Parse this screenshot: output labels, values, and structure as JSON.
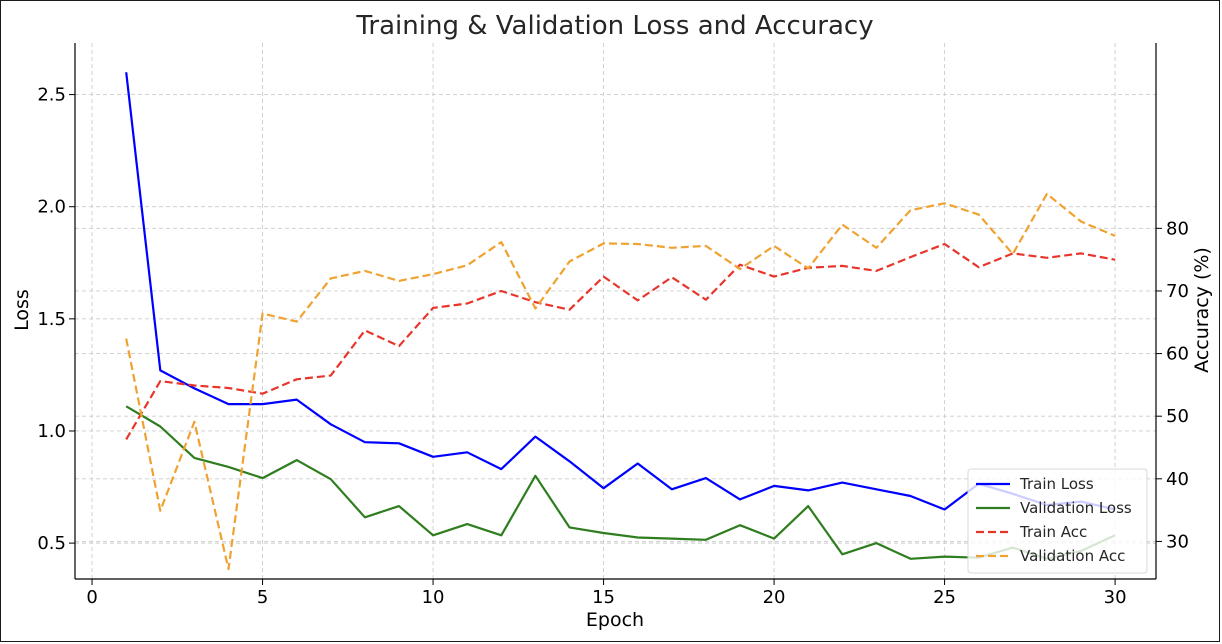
{
  "chart_data": {
    "type": "line",
    "title": "Training & Validation Loss and Accuracy",
    "xlabel": "Epoch",
    "ylabel_left": "Loss",
    "ylabel_right": "Accuracy (%)",
    "xlim": [
      -0.5,
      31.2
    ],
    "ylim_left": [
      0.34,
      2.73
    ],
    "ylim_right": [
      24.0,
      109.6
    ],
    "xticks": [
      0,
      5,
      10,
      15,
      20,
      25,
      30
    ],
    "yticks_left": [
      0.5,
      1.0,
      1.5,
      2.0,
      2.5
    ],
    "yticks_right": [
      30,
      40,
      50,
      60,
      70,
      80
    ],
    "grid": true,
    "legend_position": "bottom-right",
    "x": [
      1,
      2,
      3,
      4,
      5,
      6,
      7,
      8,
      9,
      10,
      11,
      12,
      13,
      14,
      15,
      16,
      17,
      18,
      19,
      20,
      21,
      22,
      23,
      24,
      25,
      26,
      27,
      28,
      29,
      30
    ],
    "series": [
      {
        "name": "Train Loss",
        "axis": "left",
        "style": "solid",
        "color": "#0000ff",
        "values": [
          2.6,
          1.27,
          1.19,
          1.12,
          1.12,
          1.14,
          1.03,
          0.95,
          0.945,
          0.885,
          0.905,
          0.83,
          0.975,
          0.865,
          0.745,
          0.855,
          0.74,
          0.79,
          0.695,
          0.755,
          0.735,
          0.77,
          0.74,
          0.71,
          0.65,
          0.765,
          0.72,
          0.67,
          0.685,
          0.65
        ]
      },
      {
        "name": "Validation Loss",
        "axis": "left",
        "style": "solid",
        "color": "#2e7d1e",
        "values": [
          1.11,
          1.02,
          0.88,
          0.84,
          0.79,
          0.87,
          0.785,
          0.615,
          0.665,
          0.535,
          0.585,
          0.535,
          0.8,
          0.57,
          0.545,
          0.525,
          0.52,
          0.515,
          0.58,
          0.52,
          0.665,
          0.45,
          0.5,
          0.43,
          0.44,
          0.435,
          0.48,
          0.43,
          0.465,
          0.535
        ]
      },
      {
        "name": "Train Acc",
        "axis": "right",
        "style": "dashed",
        "color": "#e8352b",
        "values": [
          46.3,
          55.6,
          54.9,
          54.5,
          53.6,
          55.9,
          56.5,
          63.7,
          61.2,
          67.3,
          68.0,
          70.0,
          68.2,
          67.0,
          72.3,
          68.5,
          72.2,
          68.6,
          74.2,
          72.3,
          73.7,
          74.0,
          73.2,
          75.4,
          77.5,
          73.8,
          76.0,
          75.3,
          76.0,
          75.0
        ]
      },
      {
        "name": "Validation Acc",
        "axis": "right",
        "style": "dashed",
        "color": "#f0a231",
        "values": [
          62.4,
          34.9,
          49.1,
          25.6,
          66.4,
          65.1,
          72.0,
          73.2,
          71.6,
          72.7,
          74.1,
          77.8,
          67.2,
          74.7,
          77.6,
          77.5,
          76.9,
          77.2,
          73.5,
          77.2,
          73.6,
          80.6,
          76.9,
          82.9,
          84.0,
          82.2,
          75.9,
          85.5,
          81.1,
          78.8
        ]
      }
    ]
  }
}
